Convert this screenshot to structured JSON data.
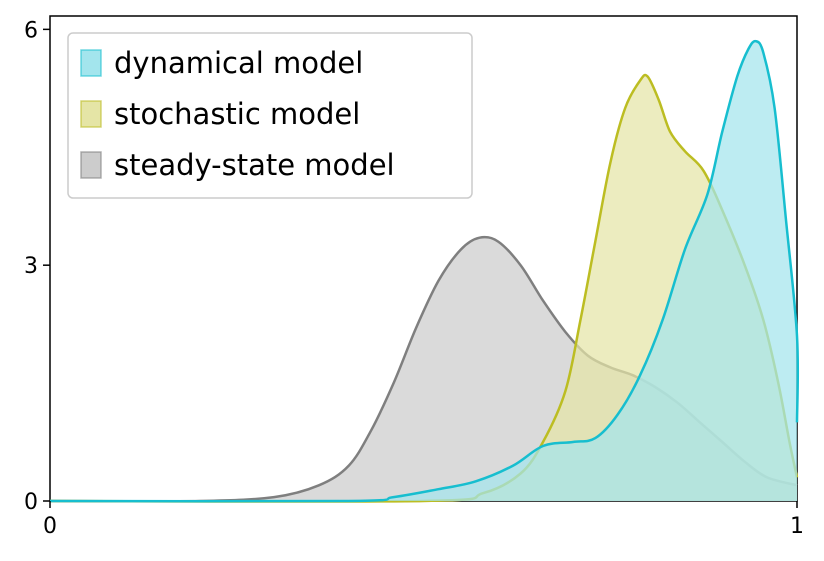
{
  "chart_data": {
    "type": "area",
    "title": "",
    "xlabel": "",
    "ylabel": "",
    "xlim": [
      0,
      1
    ],
    "ylim": [
      0,
      6.2
    ],
    "xticks": [
      {
        "value": 0,
        "label": "0"
      },
      {
        "value": 1,
        "label": "1"
      }
    ],
    "yticks": [
      {
        "value": 0,
        "label": "0"
      },
      {
        "value": 3,
        "label": "3"
      },
      {
        "value": 6,
        "label": "6"
      }
    ],
    "grid": false,
    "legend_position": "top-left",
    "series": [
      {
        "name": "steady-state model",
        "color": "#7f7f7f",
        "fill": "#cccccc",
        "points": [
          [
            0,
            0
          ],
          [
            0.2,
            0.0
          ],
          [
            0.3,
            0.05
          ],
          [
            0.36,
            0.2
          ],
          [
            0.4,
            0.45
          ],
          [
            0.43,
            0.9
          ],
          [
            0.46,
            1.5
          ],
          [
            0.49,
            2.2
          ],
          [
            0.52,
            2.8
          ],
          [
            0.55,
            3.2
          ],
          [
            0.575,
            3.35
          ],
          [
            0.6,
            3.3
          ],
          [
            0.63,
            3.0
          ],
          [
            0.66,
            2.55
          ],
          [
            0.69,
            2.15
          ],
          [
            0.72,
            1.85
          ],
          [
            0.75,
            1.7
          ],
          [
            0.78,
            1.6
          ],
          [
            0.81,
            1.45
          ],
          [
            0.84,
            1.25
          ],
          [
            0.87,
            1.0
          ],
          [
            0.9,
            0.75
          ],
          [
            0.93,
            0.5
          ],
          [
            0.96,
            0.3
          ],
          [
            1.0,
            0.2
          ]
        ]
      },
      {
        "name": "stochastic model",
        "color": "#bcbd22",
        "fill": "#e5e5a6",
        "points": [
          [
            0,
            0
          ],
          [
            0.5,
            0.0
          ],
          [
            0.58,
            0.1
          ],
          [
            0.63,
            0.35
          ],
          [
            0.66,
            0.75
          ],
          [
            0.69,
            1.4
          ],
          [
            0.71,
            2.3
          ],
          [
            0.73,
            3.3
          ],
          [
            0.75,
            4.3
          ],
          [
            0.77,
            5.0
          ],
          [
            0.79,
            5.35
          ],
          [
            0.8,
            5.4
          ],
          [
            0.815,
            5.1
          ],
          [
            0.83,
            4.7
          ],
          [
            0.85,
            4.45
          ],
          [
            0.875,
            4.2
          ],
          [
            0.9,
            3.7
          ],
          [
            0.93,
            3.0
          ],
          [
            0.955,
            2.3
          ],
          [
            0.975,
            1.5
          ],
          [
            0.99,
            0.75
          ],
          [
            1.0,
            0.3
          ]
        ]
      },
      {
        "name": "dynamical model",
        "color": "#17becf",
        "fill": "#a3e5ed",
        "points": [
          [
            0,
            0
          ],
          [
            0.4,
            0.0
          ],
          [
            0.46,
            0.05
          ],
          [
            0.52,
            0.15
          ],
          [
            0.57,
            0.25
          ],
          [
            0.62,
            0.45
          ],
          [
            0.66,
            0.7
          ],
          [
            0.7,
            0.75
          ],
          [
            0.73,
            0.8
          ],
          [
            0.76,
            1.1
          ],
          [
            0.79,
            1.6
          ],
          [
            0.82,
            2.3
          ],
          [
            0.85,
            3.2
          ],
          [
            0.88,
            3.9
          ],
          [
            0.9,
            4.7
          ],
          [
            0.92,
            5.4
          ],
          [
            0.935,
            5.75
          ],
          [
            0.945,
            5.85
          ],
          [
            0.955,
            5.7
          ],
          [
            0.97,
            5.0
          ],
          [
            0.985,
            3.6
          ],
          [
            1.0,
            2.1
          ],
          [
            1.0,
            1.0
          ]
        ]
      }
    ],
    "legend": [
      "dynamical model",
      "stochastic model",
      "steady-state model"
    ]
  }
}
